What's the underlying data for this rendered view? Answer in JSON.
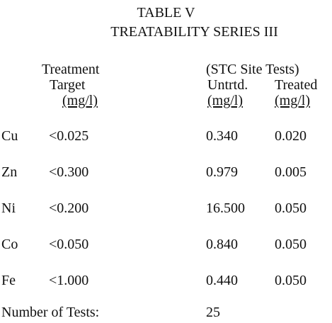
{
  "table": {
    "title": "TABLE V",
    "subtitle": "TREATABILITY SERIES III",
    "headers": {
      "left_line1": "Treatment",
      "left_line2": "Target",
      "left_units": "(mg/l)",
      "group": "(STC Site Tests)",
      "untreated": "Untrtd.",
      "treated": "Treated",
      "untreated_units": "(mg/l)",
      "treated_units": "(mg/l)"
    },
    "rows": [
      {
        "metal": "Cu",
        "target": "<0.025",
        "untreated": "0.340",
        "treated": "0.020"
      },
      {
        "metal": "Zn",
        "target": "<0.300",
        "untreated": "0.979",
        "treated": "0.005"
      },
      {
        "metal": "Ni",
        "target": "<0.200",
        "untreated": "16.500",
        "treated": "0.050"
      },
      {
        "metal": "Co",
        "target": "<0.050",
        "untreated": "0.840",
        "treated": "0.050"
      },
      {
        "metal": "Fe",
        "target": "<1.000",
        "untreated": "0.440",
        "treated": "0.050"
      }
    ],
    "footer": {
      "label": "Number of Tests:",
      "value": "25"
    }
  }
}
